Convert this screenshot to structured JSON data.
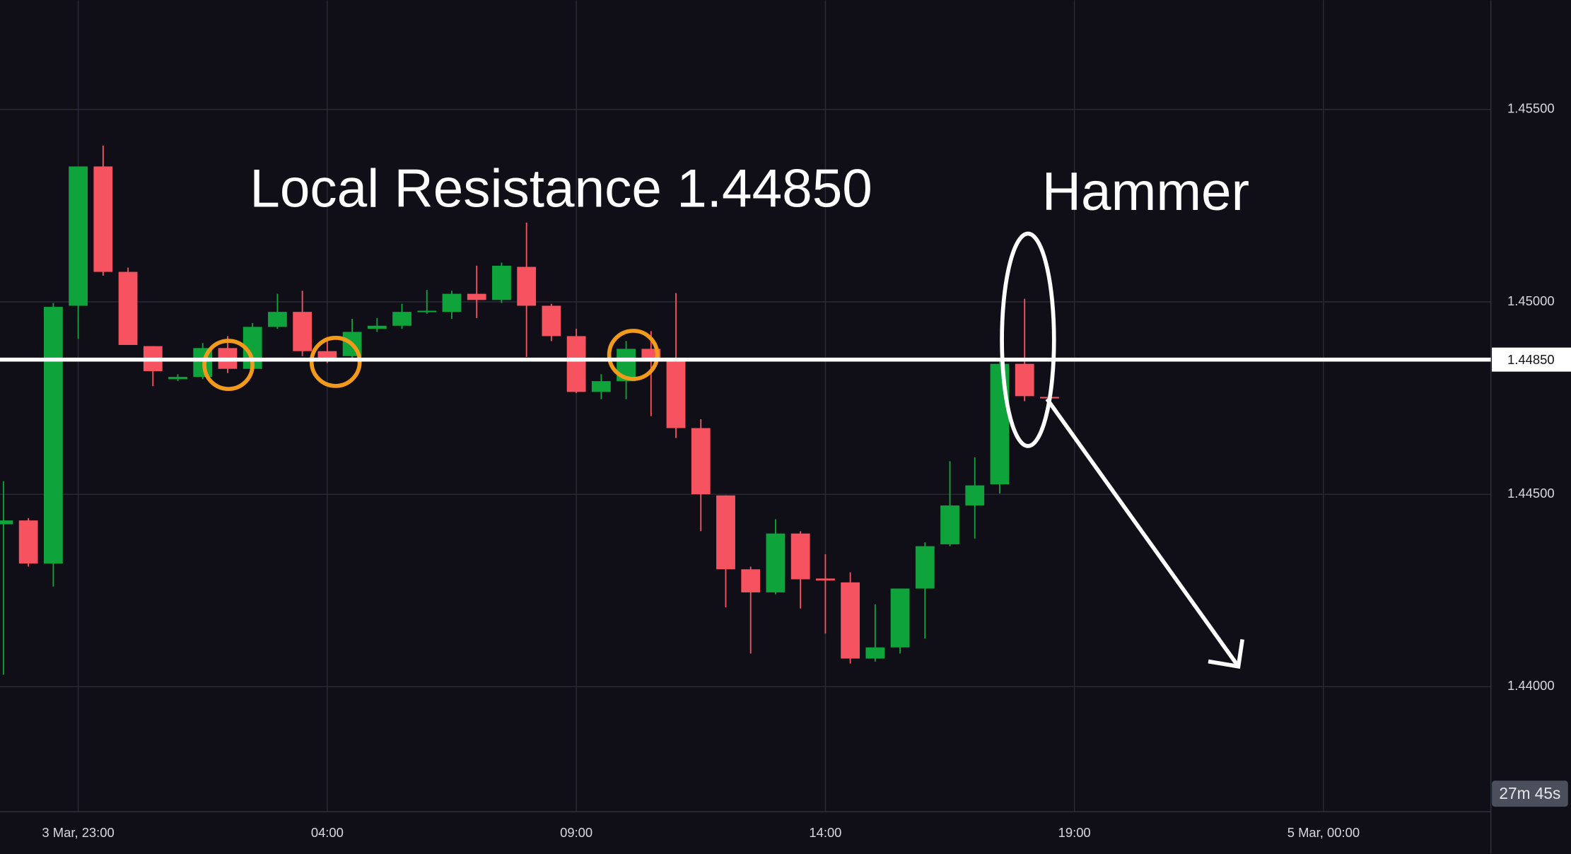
{
  "chart_data": {
    "type": "candlestick",
    "annotations": [
      "Local Resistance 1.44850",
      "Hammer"
    ],
    "x": [
      21.5,
      22,
      22.5,
      23,
      23.5,
      24,
      24.5,
      25,
      25.5,
      26,
      26.5,
      27,
      27.5,
      28,
      28.5,
      29,
      29.5,
      30,
      30.5,
      31,
      31.5,
      32,
      32.5,
      33,
      33.5,
      34,
      34.5,
      35,
      35.5,
      36,
      36.5,
      37,
      37.5,
      38,
      38.5,
      39,
      39.5,
      40,
      40.5,
      41,
      41.5,
      42,
      42.5
    ],
    "open": [
      1.44422,
      1.44432,
      1.4432,
      1.4499,
      1.45352,
      1.45078,
      1.44885,
      1.44799,
      1.44805,
      1.4488,
      1.44826,
      1.44935,
      1.44974,
      1.44872,
      1.44859,
      1.4493,
      1.44938,
      1.44974,
      1.44974,
      1.45021,
      1.45005,
      1.45091,
      1.4499,
      1.44911,
      1.44766,
      1.44794,
      1.44878,
      1.44852,
      1.44672,
      1.44497,
      1.44305,
      1.44245,
      1.44398,
      1.44281,
      1.44271,
      1.44073,
      1.44102,
      1.44255,
      1.4437,
      1.44471,
      1.44526,
      1.44839,
      1.44753
    ],
    "high": [
      1.44534,
      1.44438,
      1.44997,
      1.45352,
      1.45406,
      1.45089,
      1.44885,
      1.44812,
      1.44893,
      1.44911,
      1.44945,
      1.45021,
      1.45029,
      1.44909,
      1.44956,
      1.44958,
      1.44995,
      1.45031,
      1.45029,
      1.45094,
      1.45102,
      1.45206,
      1.44995,
      1.4493,
      1.44812,
      1.44898,
      1.44924,
      1.45023,
      1.44695,
      1.44497,
      1.44312,
      1.44435,
      1.44404,
      1.44344,
      1.44297,
      1.44214,
      1.44255,
      1.44375,
      1.44586,
      1.44596,
      1.44852,
      1.45008,
      1.44755
    ],
    "low": [
      1.44031,
      1.44312,
      1.4426,
      1.44904,
      1.45068,
      1.44888,
      1.44781,
      1.44794,
      1.44799,
      1.44815,
      1.4482,
      1.4493,
      1.44859,
      1.44841,
      1.44846,
      1.44922,
      1.4493,
      1.44969,
      1.44956,
      1.44958,
      1.44997,
      1.44857,
      1.44898,
      1.44763,
      1.44747,
      1.44747,
      1.44703,
      1.44646,
      1.44404,
      1.44206,
      1.44086,
      1.4424,
      1.44203,
      1.44138,
      1.4406,
      1.44065,
      1.44086,
      1.44125,
      1.44365,
      1.44385,
      1.44502,
      1.44742,
      1.44747
    ],
    "close": [
      1.44432,
      1.4432,
      1.44987,
      1.45352,
      1.45078,
      1.44888,
      1.4482,
      1.44805,
      1.4488,
      1.44826,
      1.44935,
      1.44974,
      1.44872,
      1.44852,
      1.44922,
      1.44938,
      1.44974,
      1.44977,
      1.45021,
      1.45005,
      1.45094,
      1.4499,
      1.44911,
      1.44766,
      1.44794,
      1.44878,
      1.44854,
      1.44672,
      1.445,
      1.44305,
      1.44245,
      1.44398,
      1.44279,
      1.44276,
      1.44073,
      1.44102,
      1.44255,
      1.44365,
      1.44471,
      1.44523,
      1.44839,
      1.44755,
      1.4475
    ],
    "up_color": "#0fa33b",
    "down_color": "#f7525f",
    "xlim": [
      21.43,
      51.36
    ],
    "xticks": [
      {
        "value": 23,
        "label": "3 Mar, 23:00"
      },
      {
        "value": 28,
        "label": "04:00"
      },
      {
        "value": 33,
        "label": "09:00"
      },
      {
        "value": 38,
        "label": "14:00"
      },
      {
        "value": 43,
        "label": "19:00"
      },
      {
        "value": 48,
        "label": "5 Mar, 00:00"
      }
    ],
    "ylim": [
      1.43675,
      1.45784
    ],
    "yticks": [
      {
        "value": 1.44,
        "label": "1.44000"
      },
      {
        "value": 1.445,
        "label": "1.44500"
      },
      {
        "value": 1.45,
        "label": "1.45000"
      },
      {
        "value": 1.455,
        "label": "1.45500"
      }
    ],
    "price_line": {
      "value": 1.4485,
      "label": "1.44850"
    },
    "countdown": "27m 45s",
    "grid": true
  }
}
